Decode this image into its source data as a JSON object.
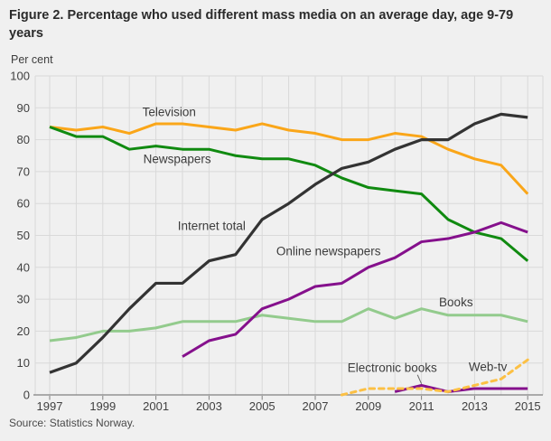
{
  "figure": {
    "title": "Figure 2. Percentage who used different mass media on an average day, age 9-79 years",
    "ylabel": "Per cent",
    "source": "Source: Statistics Norway."
  },
  "chart_data": {
    "type": "line",
    "title": "Figure 2. Percentage who used different mass media on an average day, age 9-79 years",
    "xlabel": "",
    "ylabel": "Per cent",
    "xlim": [
      1997,
      2015
    ],
    "ylim": [
      0,
      100
    ],
    "grid": true,
    "background": "#f0f0f0",
    "gridline_color": "#d9d9d9",
    "axis_color": "#808080",
    "x_years": [
      1997,
      1998,
      1999,
      2000,
      2001,
      2002,
      2003,
      2004,
      2005,
      2006,
      2007,
      2008,
      2009,
      2010,
      2011,
      2012,
      2013,
      2014,
      2015
    ],
    "x_tick_labels": [
      "1997",
      "1999",
      "2001",
      "2003",
      "2005",
      "2007",
      "2009",
      "2011",
      "2013",
      "2015"
    ],
    "y_ticks": [
      0,
      10,
      20,
      30,
      40,
      50,
      60,
      70,
      80,
      90,
      100
    ],
    "series": [
      {
        "name": "Books",
        "color": "#93cb8d",
        "dashed": false,
        "start_year": 1997,
        "values": [
          17,
          18,
          20,
          20,
          21,
          23,
          23,
          23,
          25,
          24,
          23,
          23,
          27,
          24,
          27,
          25,
          25,
          25,
          23
        ]
      },
      {
        "name": "Television",
        "color": "#faa619",
        "dashed": false,
        "start_year": 1997,
        "values": [
          84,
          83,
          84,
          82,
          85,
          85,
          84,
          83,
          85,
          83,
          82,
          80,
          80,
          82,
          81,
          77,
          74,
          72,
          63
        ]
      },
      {
        "name": "Newspapers",
        "color": "#108a10",
        "dashed": false,
        "start_year": 1997,
        "values": [
          84,
          81,
          81,
          77,
          78,
          77,
          77,
          75,
          74,
          74,
          72,
          68,
          65,
          64,
          63,
          55,
          51,
          49,
          42
        ]
      },
      {
        "name": "Internet total",
        "color": "#333333",
        "dashed": false,
        "start_year": 1997,
        "values": [
          7,
          10,
          18,
          27,
          35,
          35,
          42,
          44,
          55,
          60,
          66,
          71,
          73,
          77,
          80,
          80,
          85,
          88,
          87
        ]
      },
      {
        "name": "Online newspapers",
        "color": "#85108c",
        "dashed": false,
        "start_year": 2002,
        "values": [
          12,
          17,
          19,
          27,
          30,
          34,
          35,
          40,
          43,
          48,
          49,
          51,
          54,
          51
        ]
      },
      {
        "name": "Electronic books",
        "color": "#85108c",
        "dashed": false,
        "start_year": 2010,
        "values": [
          1,
          3,
          1,
          2,
          2,
          2
        ]
      },
      {
        "name": "Web-tv",
        "color": "#fcc044",
        "dashed": true,
        "start_year": 2008,
        "values": [
          0,
          2,
          2,
          2,
          1,
          3,
          5,
          11
        ]
      }
    ],
    "series_labels": [
      {
        "text": "Television",
        "year": 2001.5,
        "value": 88.6
      },
      {
        "text": "Newspapers",
        "year": 2001.8,
        "value": 74.0
      },
      {
        "text": "Internet total",
        "year": 2003.1,
        "value": 53.0
      },
      {
        "text": "Online newspapers",
        "year": 2007.5,
        "value": 45.0
      },
      {
        "text": "Books",
        "year": 2012.3,
        "value": 29.0
      },
      {
        "text": "Electronic books",
        "year": 2009.9,
        "value": 8.5
      },
      {
        "text": "Web-tv",
        "year": 2013.5,
        "value": 8.8
      }
    ],
    "leader_line": {
      "from": {
        "year": 2010.85,
        "value": 6.3
      },
      "to": {
        "year": 2011.0,
        "value": 3.5
      }
    },
    "legend_position": "inline-labels"
  }
}
